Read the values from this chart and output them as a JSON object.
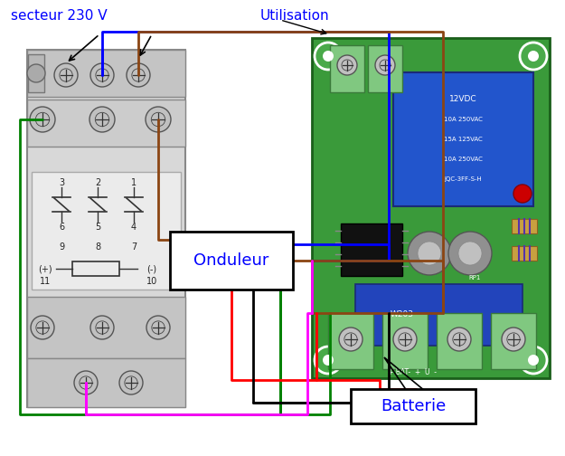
{
  "bg_color": "#ffffff",
  "label_secteur": "secteur 230 V",
  "label_utilisation": "Utilisation",
  "label_onduleur": "Onduleur",
  "label_batterie": "Batterie",
  "text_blue": "#0000ff",
  "wire_green": "#008000",
  "wire_blue": "#0000ff",
  "wire_brown": "#8B4513",
  "wire_red": "#ff0000",
  "wire_black": "#000000",
  "wire_magenta": "#ff00ff",
  "pcb_green": "#3a9a3a",
  "terminal_green": "#80c880",
  "relay_blue": "#2255cc",
  "ic_black": "#111111",
  "cap_gray": "#909090",
  "pot_blue": "#2244bb",
  "resistor_stripe": "#c8a040",
  "led_red": "#cc0000",
  "contactor_bg": "#d0d0d0",
  "contactor_border": "#888888"
}
